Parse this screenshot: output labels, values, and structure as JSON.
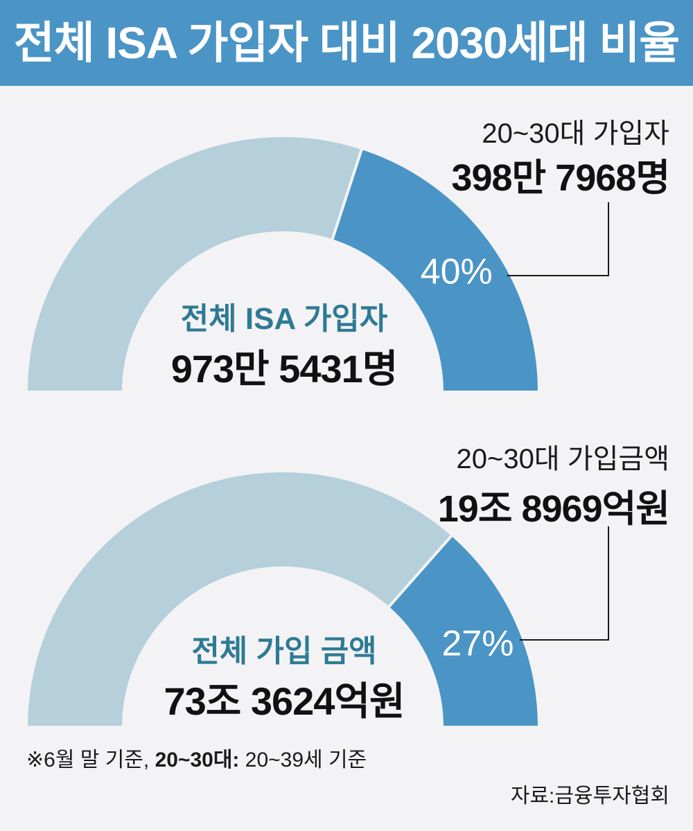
{
  "title": "전체 ISA 가입자 대비 2030세대 비율",
  "colors": {
    "header": "#4a94c6",
    "highlight": "#4a94c6",
    "rest": "#b5cfdb",
    "center_title": "#2e7a94",
    "background": "#f3f3f5"
  },
  "chart_data": [
    {
      "type": "pie",
      "variant": "half-donut",
      "center_title": "전체 ISA 가입자",
      "center_value": "973만 5431명",
      "percent_label": "40%",
      "highlight_fraction": 0.4,
      "callout_caption": "20~30대 가입자",
      "callout_value": "398만 7968명"
    },
    {
      "type": "pie",
      "variant": "half-donut",
      "center_title": "전체 가입 금액",
      "center_value": "73조 3624억원",
      "percent_label": "27%",
      "highlight_fraction": 0.27,
      "callout_caption": "20~30대 가입금액",
      "callout_value": "19조 8969억원"
    }
  ],
  "footnote_prefix": "※6월 말 기준, ",
  "footnote_bold": "20~30대:",
  "footnote_suffix": " 20~39세 기준",
  "source": "자료:금융투자협회"
}
